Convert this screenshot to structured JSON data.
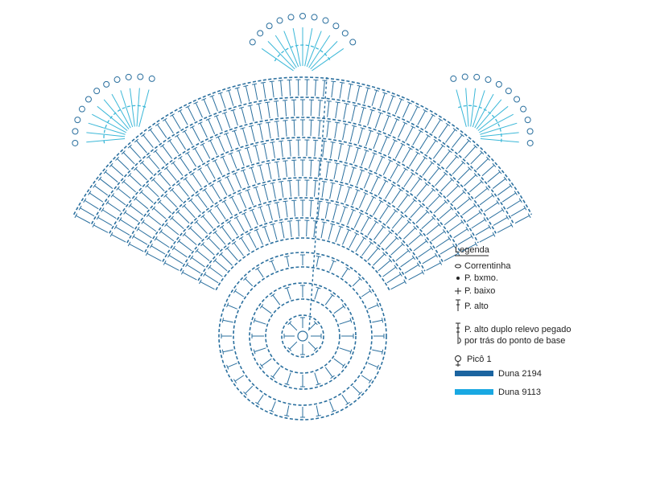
{
  "legend": {
    "title": "Legenda",
    "items": [
      {
        "label": "Correntinha"
      },
      {
        "label": "P. bxmo."
      },
      {
        "label": "P. baixo"
      },
      {
        "label": "P. alto"
      },
      {
        "label_lines": [
          "P. alto duplo relevo pegado",
          "por trás do ponto de base"
        ]
      },
      {
        "label": "Picô 1"
      },
      {
        "label": "Duna 2194"
      },
      {
        "label": "Duna 9113"
      }
    ]
  }
}
